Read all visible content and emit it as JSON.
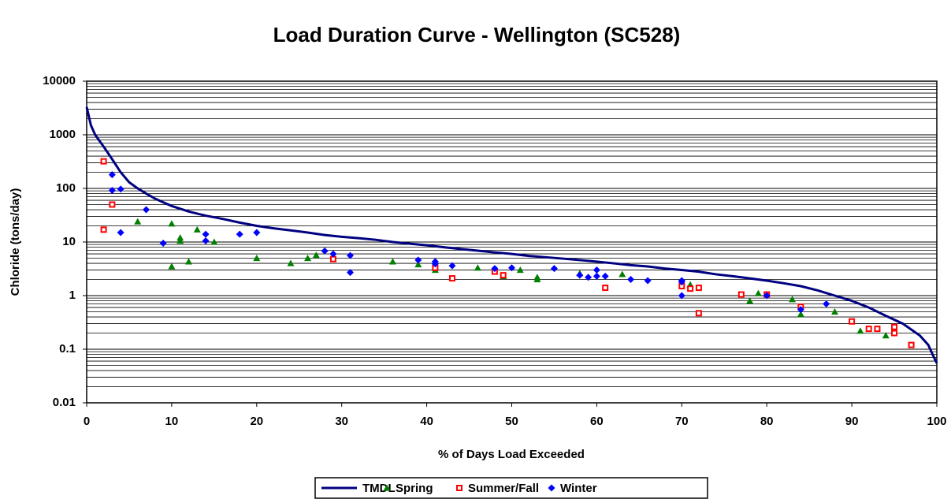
{
  "chart_data": {
    "type": "scatter",
    "title": "Load Duration Curve - Wellington (SC528)",
    "x_label": "% of Days Load Exceeded",
    "y_label": "Chloride (tons/day)",
    "xlim": [
      0,
      100
    ],
    "xticks": [
      0,
      10,
      20,
      30,
      40,
      50,
      60,
      70,
      80,
      90,
      100
    ],
    "ylim": [
      0.01,
      10000
    ],
    "yticks": [
      0.01,
      0.1,
      1,
      10,
      100,
      1000,
      10000
    ],
    "y_scale": "log",
    "grid": true,
    "minor_grid": true,
    "legend": "bottom",
    "series": [
      {
        "name": "TMDL",
        "color": "#000080",
        "kind": "line",
        "x": [
          0,
          0.5,
          1,
          2,
          3,
          4,
          5,
          6,
          7,
          8,
          9,
          10,
          12,
          14,
          16,
          18,
          20,
          22,
          24,
          26,
          28,
          30,
          32,
          34,
          36,
          38,
          40,
          42,
          44,
          46,
          48,
          50,
          52,
          54,
          56,
          58,
          60,
          62,
          64,
          66,
          68,
          70,
          72,
          74,
          76,
          78,
          80,
          82,
          84,
          86,
          88,
          90,
          92,
          94,
          96,
          98,
          99,
          99.5,
          100
        ],
        "values": [
          3300,
          1500,
          1000,
          600,
          350,
          200,
          130,
          100,
          80,
          65,
          55,
          47,
          37,
          31,
          27,
          23,
          20,
          18,
          16.5,
          15,
          13.5,
          12.5,
          11.8,
          11,
          10,
          9.3,
          8.7,
          8,
          7.4,
          6.9,
          6.4,
          6,
          5.5,
          5.2,
          4.9,
          4.6,
          4.3,
          4,
          3.7,
          3.5,
          3.2,
          3,
          2.8,
          2.5,
          2.3,
          2.1,
          1.9,
          1.7,
          1.5,
          1.25,
          1.0,
          0.8,
          0.6,
          0.42,
          0.3,
          0.18,
          0.12,
          0.08,
          0.055
        ]
      },
      {
        "name": "Spring",
        "color": "#008000",
        "kind": "triangle",
        "x": [
          6,
          10,
          10,
          11,
          11,
          12,
          13,
          15,
          20,
          24,
          26,
          27,
          36,
          39,
          41,
          46,
          49,
          51,
          53,
          53,
          58,
          63,
          71,
          78,
          79,
          83,
          84,
          88,
          91,
          94
        ],
        "values": [
          24,
          22,
          3.5,
          12,
          10.5,
          4.3,
          17,
          10,
          5,
          4,
          5,
          5.7,
          4.3,
          3.8,
          3,
          3.3,
          2.3,
          3,
          2.2,
          2,
          2.6,
          2.5,
          1.6,
          0.8,
          1.1,
          0.85,
          0.45,
          0.5,
          0.22,
          0.18
        ]
      },
      {
        "name": "Summer/Fall",
        "color": "#ff0000",
        "kind": "square",
        "x": [
          2,
          2,
          3,
          29,
          41,
          43,
          48,
          49,
          61,
          70,
          71,
          72,
          72,
          77,
          80,
          84,
          90,
          92,
          93,
          95,
          95,
          97
        ],
        "values": [
          320,
          17,
          50,
          4.8,
          3.3,
          2.1,
          2.8,
          2.4,
          1.4,
          1.5,
          1.35,
          1.4,
          0.47,
          1.05,
          1.05,
          0.62,
          0.33,
          0.24,
          0.24,
          0.26,
          0.2,
          0.12
        ]
      },
      {
        "name": "Winter",
        "color": "#0000ff",
        "kind": "diamond",
        "x": [
          3,
          3,
          4,
          4,
          7,
          9,
          14,
          14,
          18,
          20,
          28,
          29,
          31,
          31,
          39,
          41,
          41,
          43,
          48,
          50,
          55,
          58,
          59,
          60,
          60,
          61,
          64,
          66,
          70,
          70,
          70,
          80,
          84,
          87
        ],
        "values": [
          180,
          92,
          97,
          15,
          40,
          9.5,
          14,
          10.5,
          14,
          15,
          6.8,
          6,
          5.6,
          2.7,
          4.6,
          4.3,
          3.9,
          3.6,
          3.2,
          3.3,
          3.2,
          2.4,
          2.2,
          3,
          2.3,
          2.3,
          2,
          1.9,
          1.9,
          1.8,
          1,
          1,
          0.55,
          0.7
        ]
      }
    ]
  }
}
